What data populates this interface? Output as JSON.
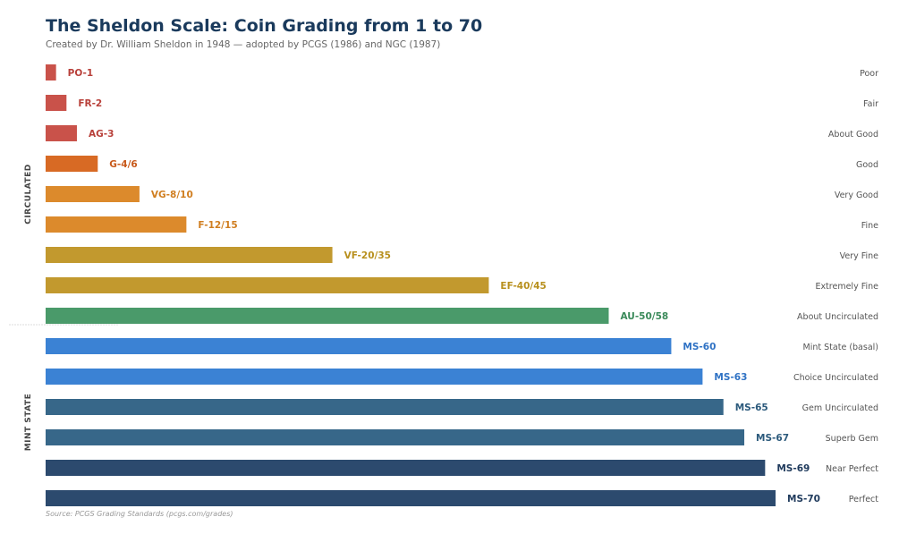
{
  "chart_data": {
    "type": "bar",
    "orientation": "horizontal",
    "title": "The Sheldon Scale: Coin Grading from 1 to 70",
    "subtitle": "Created by Dr. William Sheldon in 1948 — adopted by PCGS (1986) and NGC (1987)",
    "source": "Source: PCGS Grading Standards (pcgs.com/grades)",
    "xlim": [
      0,
      70
    ],
    "grid": false,
    "groups": [
      {
        "name": "CIRCULATED",
        "rows": [
          0,
          8
        ]
      },
      {
        "name": "MINT STATE",
        "rows": [
          9,
          14
        ]
      }
    ],
    "bars": [
      {
        "grade": "PO-1",
        "value": 1,
        "desc": "Poor",
        "color": "#c9524a",
        "label_color": "#b8403a"
      },
      {
        "grade": "FR-2",
        "value": 2,
        "desc": "Fair",
        "color": "#c9524a",
        "label_color": "#b8403a"
      },
      {
        "grade": "AG-3",
        "value": 3,
        "desc": "About Good",
        "color": "#c9524a",
        "label_color": "#b8403a"
      },
      {
        "grade": "G-4/6",
        "value": 5,
        "desc": "Good",
        "color": "#d86a24",
        "label_color": "#c85a1c"
      },
      {
        "grade": "VG-8/10",
        "value": 9,
        "desc": "Very Good",
        "color": "#dc8a2c",
        "label_color": "#d07e20"
      },
      {
        "grade": "F-12/15",
        "value": 13.5,
        "desc": "Fine",
        "color": "#dc8a2c",
        "label_color": "#d07e20"
      },
      {
        "grade": "VF-20/35",
        "value": 27.5,
        "desc": "Very Fine",
        "color": "#c2992e",
        "label_color": "#b8901e"
      },
      {
        "grade": "EF-40/45",
        "value": 42.5,
        "desc": "Extremely Fine",
        "color": "#c2992e",
        "label_color": "#b8901e"
      },
      {
        "grade": "AU-50/58",
        "value": 54,
        "desc": "About Uncirculated",
        "color": "#4a9a6a",
        "label_color": "#3a8a5a"
      },
      {
        "grade": "MS-60",
        "value": 60,
        "desc": "Mint State (basal)",
        "color": "#3b82d4",
        "label_color": "#2f72c4"
      },
      {
        "grade": "MS-63",
        "value": 63,
        "desc": "Choice Uncirculated",
        "color": "#3b82d4",
        "label_color": "#2f72c4"
      },
      {
        "grade": "MS-65",
        "value": 65,
        "desc": "Gem Uncirculated",
        "color": "#376789",
        "label_color": "#2c5a7c"
      },
      {
        "grade": "MS-67",
        "value": 67,
        "desc": "Superb Gem",
        "color": "#376789",
        "label_color": "#2c5a7c"
      },
      {
        "grade": "MS-69",
        "value": 69,
        "desc": "Near Perfect",
        "color": "#2c4a6e",
        "label_color": "#1f3a5c"
      },
      {
        "grade": "MS-70",
        "value": 70,
        "desc": "Perfect",
        "color": "#2c4a6e",
        "label_color": "#1f3a5c"
      }
    ]
  }
}
